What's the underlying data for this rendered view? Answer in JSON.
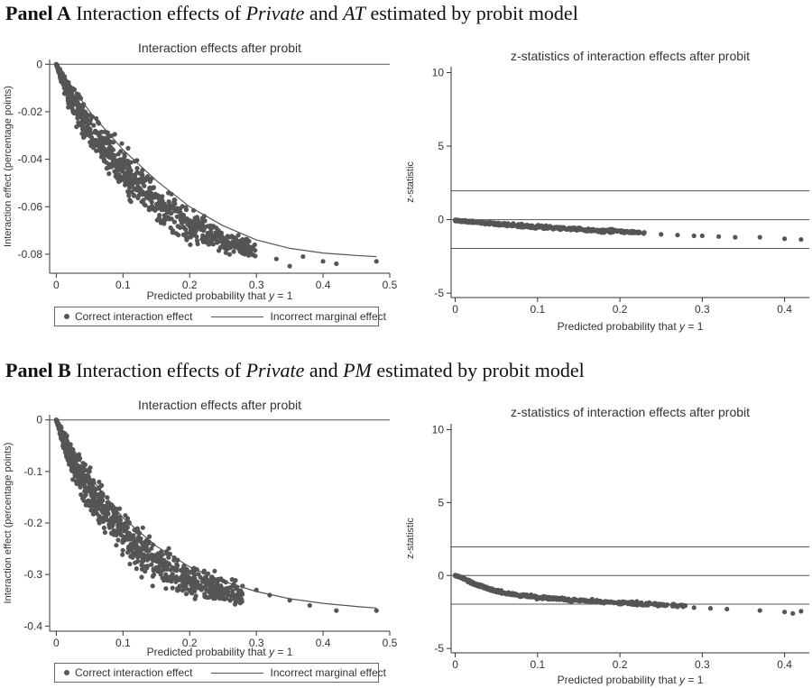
{
  "panels": [
    {
      "label": "Panel A",
      "title_pre": "Interaction effects of ",
      "var1": "Private",
      "title_mid": " and ",
      "var2": "AT",
      "title_post": " estimated by probit model"
    },
    {
      "label": "Panel B",
      "title_pre": "Interaction effects of ",
      "var1": "Private",
      "title_mid": " and ",
      "var2": "PM",
      "title_post": " estimated by probit model"
    }
  ],
  "legend": {
    "dot_label": "Correct interaction effect",
    "line_label": "Incorrect marginal effect"
  },
  "colors": {
    "marker": "#555555",
    "line": "#555555",
    "axis": "#333333"
  },
  "chart_data": [
    {
      "id": "a-left",
      "type": "scatter",
      "title": "Interaction effects after probit",
      "xlabel": "Predicted probability that y = 1",
      "ylabel": "Interaction effect (percentage points)",
      "xlim": [
        -0.01,
        0.5
      ],
      "ylim": [
        -0.088,
        0.002
      ],
      "xticks": [
        0,
        0.1,
        0.2,
        0.3,
        0.4,
        0.5
      ],
      "xtick_labels": [
        "0",
        "0.1",
        "0.2",
        "0.3",
        "0.4",
        "0.5"
      ],
      "yticks": [
        0,
        -0.02,
        -0.04,
        -0.06,
        -0.08
      ],
      "ytick_labels": [
        "0",
        "-0.02",
        "-0.04",
        "-0.06",
        "-0.08"
      ],
      "hlines": [
        0
      ],
      "scatter_band": {
        "x": [
          0.0,
          0.02,
          0.05,
          0.1,
          0.15,
          0.2,
          0.25,
          0.3
        ],
        "y_mid": [
          0.0,
          -0.014,
          -0.028,
          -0.044,
          -0.058,
          -0.068,
          -0.074,
          -0.079
        ],
        "spread": [
          0.0,
          0.006,
          0.008,
          0.009,
          0.008,
          0.007,
          0.005,
          0.004
        ]
      },
      "scatter_outliers": {
        "x": [
          0.33,
          0.35,
          0.37,
          0.4,
          0.42,
          0.48
        ],
        "y": [
          -0.082,
          -0.085,
          -0.081,
          -0.083,
          -0.084,
          -0.083
        ]
      },
      "series": [
        {
          "name": "Incorrect marginal effect",
          "type": "line",
          "x": [
            0,
            0.05,
            0.1,
            0.15,
            0.2,
            0.25,
            0.3,
            0.35,
            0.4,
            0.45,
            0.48
          ],
          "y": [
            0,
            -0.02,
            -0.036,
            -0.049,
            -0.06,
            -0.068,
            -0.074,
            -0.0775,
            -0.0795,
            -0.0805,
            -0.081
          ]
        }
      ]
    },
    {
      "id": "a-right",
      "type": "scatter",
      "title": "z-statistics of interaction effects after probit",
      "xlabel": "Predicted probability that y = 1",
      "ylabel": "z-statistic",
      "xlim": [
        -0.005,
        0.43
      ],
      "ylim": [
        -5.3,
        10.4
      ],
      "xticks": [
        0,
        0.1,
        0.2,
        0.3,
        0.4
      ],
      "xtick_labels": [
        "0",
        "0.1",
        "0.2",
        "0.3",
        "0.4"
      ],
      "yticks": [
        10,
        5,
        0,
        -5
      ],
      "ytick_labels": [
        "10",
        "5",
        "0",
        "-5"
      ],
      "hlines": [
        1.96,
        0,
        -1.96
      ],
      "scatter_band": {
        "x": [
          0.0,
          0.05,
          0.1,
          0.15,
          0.2,
          0.23
        ],
        "y_mid": [
          -0.05,
          -0.3,
          -0.5,
          -0.65,
          -0.8,
          -0.9
        ],
        "spread": [
          0.05,
          0.1,
          0.12,
          0.12,
          0.12,
          0.1
        ]
      },
      "scatter_outliers": {
        "x": [
          0.25,
          0.27,
          0.29,
          0.3,
          0.32,
          0.34,
          0.37,
          0.4,
          0.42
        ],
        "y": [
          -1.0,
          -1.05,
          -1.1,
          -1.1,
          -1.15,
          -1.2,
          -1.2,
          -1.3,
          -1.35
        ]
      }
    },
    {
      "id": "b-left",
      "type": "scatter",
      "title": "Interaction effects after probit",
      "xlabel": "Predicted probability that y = 1",
      "ylabel": "Interaction effect (percentage points)",
      "xlim": [
        -0.01,
        0.5
      ],
      "ylim": [
        -0.41,
        0.01
      ],
      "xticks": [
        0,
        0.1,
        0.2,
        0.3,
        0.4,
        0.5
      ],
      "xtick_labels": [
        "0",
        "0.1",
        "0.2",
        "0.3",
        "0.4",
        "0.5"
      ],
      "yticks": [
        0,
        -0.1,
        -0.2,
        -0.3,
        -0.4
      ],
      "ytick_labels": [
        "0",
        "-0.1",
        "-0.2",
        "-0.3",
        "-0.4"
      ],
      "hlines": [
        0
      ],
      "scatter_band": {
        "x": [
          0.0,
          0.02,
          0.05,
          0.1,
          0.15,
          0.2,
          0.25,
          0.28
        ],
        "y_mid": [
          0.0,
          -0.07,
          -0.14,
          -0.22,
          -0.28,
          -0.31,
          -0.33,
          -0.34
        ],
        "spread": [
          0.0,
          0.03,
          0.04,
          0.045,
          0.04,
          0.035,
          0.025,
          0.02
        ]
      },
      "scatter_outliers": {
        "x": [
          0.3,
          0.32,
          0.35,
          0.38,
          0.42,
          0.48
        ],
        "y": [
          -0.33,
          -0.34,
          -0.35,
          -0.36,
          -0.37,
          -0.37
        ]
      },
      "series": [
        {
          "name": "Incorrect marginal effect",
          "type": "line",
          "x": [
            0,
            0.05,
            0.1,
            0.15,
            0.2,
            0.25,
            0.3,
            0.35,
            0.4,
            0.45,
            0.48
          ],
          "y": [
            0,
            -0.11,
            -0.19,
            -0.245,
            -0.285,
            -0.313,
            -0.333,
            -0.347,
            -0.356,
            -0.362,
            -0.365
          ]
        }
      ]
    },
    {
      "id": "b-right",
      "type": "scatter",
      "title": "z-statistics of interaction effects after probit",
      "xlabel": "Predicted probability that y = 1",
      "ylabel": "z-statistic",
      "xlim": [
        -0.005,
        0.43
      ],
      "ylim": [
        -5.3,
        10.4
      ],
      "xticks": [
        0,
        0.1,
        0.2,
        0.3,
        0.4
      ],
      "xtick_labels": [
        "0",
        "0.1",
        "0.2",
        "0.3",
        "0.4"
      ],
      "yticks": [
        10,
        5,
        0,
        -5
      ],
      "ytick_labels": [
        "10",
        "5",
        "0",
        "-5"
      ],
      "hlines": [
        1.96,
        0,
        -1.96
      ],
      "scatter_band": {
        "x": [
          0.0,
          0.01,
          0.02,
          0.04,
          0.06,
          0.1,
          0.15,
          0.2,
          0.25,
          0.28
        ],
        "y_mid": [
          0.0,
          -0.2,
          -0.5,
          -0.9,
          -1.2,
          -1.5,
          -1.7,
          -1.85,
          -2.0,
          -2.1
        ],
        "spread": [
          0.03,
          0.08,
          0.1,
          0.1,
          0.1,
          0.1,
          0.1,
          0.12,
          0.12,
          0.1
        ]
      },
      "scatter_outliers": {
        "x": [
          0.29,
          0.31,
          0.33,
          0.37,
          0.4,
          0.41,
          0.42
        ],
        "y": [
          -2.2,
          -2.25,
          -2.3,
          -2.4,
          -2.5,
          -2.6,
          -2.45
        ]
      }
    }
  ]
}
